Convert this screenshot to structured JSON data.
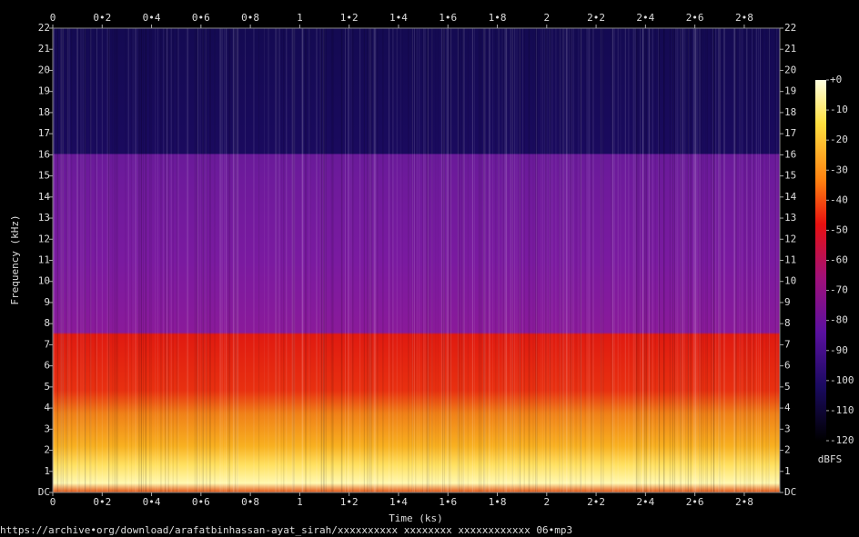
{
  "chart_data": {
    "type": "spectrogram",
    "xlabel": "Time (ks)",
    "ylabel": "Frequency (kHz)",
    "xlim": [
      0,
      2.944
    ],
    "ylim": [
      0,
      22
    ],
    "xticks": [
      0,
      {
        "value": 0.2,
        "label": "0•2"
      },
      {
        "value": 0.4,
        "label": "0•4"
      },
      {
        "value": 0.6,
        "label": "0•6"
      },
      {
        "value": 0.8,
        "label": "0•8"
      },
      1,
      {
        "value": 1.2,
        "label": "1•2"
      },
      {
        "value": 1.4,
        "label": "1•4"
      },
      {
        "value": 1.6,
        "label": "1•6"
      },
      {
        "value": 1.8,
        "label": "1•8"
      },
      2,
      {
        "value": 2.2,
        "label": "2•2"
      },
      {
        "value": 2.4,
        "label": "2•4"
      },
      {
        "value": 2.6,
        "label": "2•6"
      },
      {
        "value": 2.8,
        "label": "2•8"
      }
    ],
    "yticks": [
      {
        "value": 0,
        "label": "DC"
      },
      1,
      2,
      3,
      4,
      5,
      6,
      7,
      8,
      9,
      10,
      11,
      12,
      13,
      14,
      15,
      16,
      17,
      18,
      19,
      20,
      21,
      22
    ],
    "colorbar": {
      "label": "dBFS",
      "lim": [
        -120,
        0
      ],
      "ticks": [
        {
          "value": 0,
          "label": "+0"
        },
        -10,
        -20,
        -30,
        -40,
        -50,
        -60,
        -70,
        -80,
        -90,
        -100,
        -110,
        -120
      ]
    },
    "source": "https://archive•org/download/arafatbinhassan-ayat_sirah/xxxxxxxxxx xxxxxxxx xxxxxxxxxxxx 06•mp3"
  }
}
